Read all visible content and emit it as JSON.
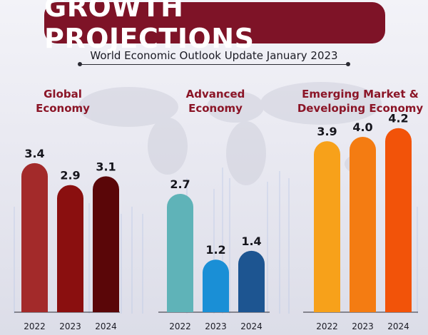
{
  "header": {
    "title": "GROWTH PROJECTIONS",
    "subtitle": "World Economic Outlook Update January 2023"
  },
  "colors": {
    "banner": "#7e1327",
    "panel_title_global": "#8b1527",
    "panel_title_advanced": "#8b1527",
    "panel_title_emerging": "#8b1527",
    "axis": "#2a2a33"
  },
  "chart_data": [
    {
      "type": "bar",
      "title_lines": [
        "Global",
        "Economy"
      ],
      "categories": [
        "2022",
        "2023",
        "2024"
      ],
      "values": [
        3.4,
        2.9,
        3.1
      ],
      "value_labels": [
        "3.4",
        "2.9",
        "3.1"
      ],
      "colors": [
        "#a32a2a",
        "#8a0f0f",
        "#5a0608"
      ],
      "ylim": [
        0,
        4.2
      ]
    },
    {
      "type": "bar",
      "title_lines": [
        "Advanced",
        "Economy"
      ],
      "categories": [
        "2022",
        "2023",
        "2024"
      ],
      "values": [
        2.7,
        1.2,
        1.4
      ],
      "value_labels": [
        "2.7",
        "1.2",
        "1.4"
      ],
      "colors": [
        "#5fb3b8",
        "#1a8fd6",
        "#1d5591"
      ],
      "ylim": [
        0,
        4.2
      ]
    },
    {
      "type": "bar",
      "title_lines": [
        "Emerging Market &",
        "Developing Economy"
      ],
      "categories": [
        "2022",
        "2023",
        "2024"
      ],
      "values": [
        3.9,
        4.0,
        4.2
      ],
      "value_labels": [
        "3.9",
        "4.0",
        "4.2"
      ],
      "colors": [
        "#f7a11a",
        "#f47c12",
        "#f25309"
      ],
      "ylim": [
        0,
        4.2
      ]
    }
  ]
}
